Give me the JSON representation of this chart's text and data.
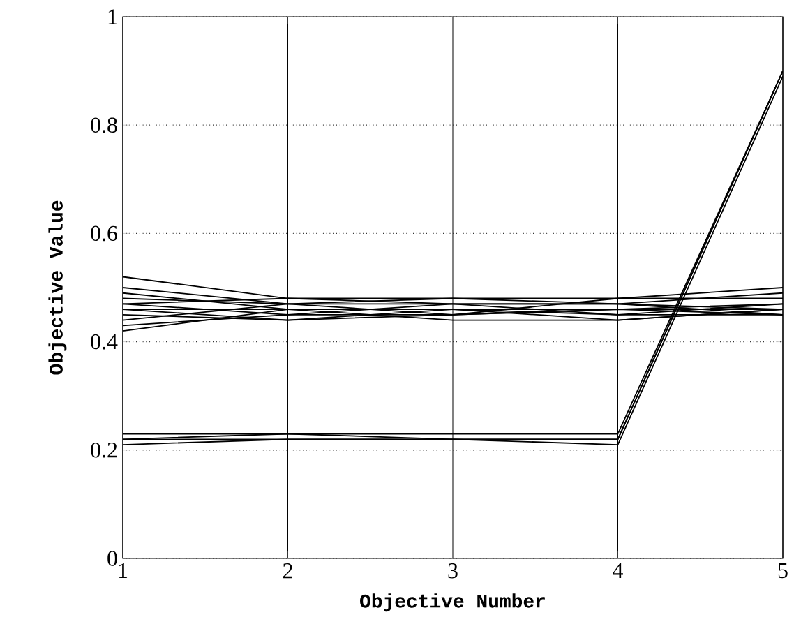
{
  "chart_data": {
    "type": "line",
    "xlabel": "Objective Number",
    "ylabel": "Objective Value",
    "x": [
      1,
      2,
      3,
      4,
      5
    ],
    "xlim": [
      1,
      5
    ],
    "xticks": [
      1,
      2,
      3,
      4,
      5
    ],
    "ylim": [
      0,
      1
    ],
    "yticks": [
      0,
      0.2,
      0.4,
      0.6,
      0.8,
      1
    ],
    "grid": true,
    "marker": "none",
    "line_style": "solid",
    "series": [
      {
        "color": "#000000",
        "values": [
          0.52,
          0.48,
          0.47,
          0.47,
          0.46
        ]
      },
      {
        "color": "#000000",
        "values": [
          0.5,
          0.47,
          0.48,
          0.48,
          0.5
        ]
      },
      {
        "color": "#000000",
        "values": [
          0.49,
          0.46,
          0.46,
          0.45,
          0.47
        ]
      },
      {
        "color": "#000000",
        "values": [
          0.48,
          0.47,
          0.45,
          0.46,
          0.46
        ]
      },
      {
        "color": "#000000",
        "values": [
          0.47,
          0.45,
          0.47,
          0.47,
          0.45
        ]
      },
      {
        "color": "#000000",
        "values": [
          0.46,
          0.46,
          0.44,
          0.44,
          0.46
        ]
      },
      {
        "color": "#000000",
        "values": [
          0.45,
          0.44,
          0.46,
          0.46,
          0.47
        ]
      },
      {
        "color": "#000000",
        "values": [
          0.44,
          0.47,
          0.47,
          0.45,
          0.45
        ]
      },
      {
        "color": "#000000",
        "values": [
          0.43,
          0.45,
          0.45,
          0.48,
          0.48
        ]
      },
      {
        "color": "#000000",
        "values": [
          0.42,
          0.46,
          0.46,
          0.44,
          0.46
        ]
      },
      {
        "color": "#000000",
        "values": [
          0.47,
          0.48,
          0.48,
          0.47,
          0.49
        ]
      },
      {
        "color": "#000000",
        "values": [
          0.46,
          0.44,
          0.45,
          0.46,
          0.45
        ]
      },
      {
        "color": "#000000",
        "values": [
          0.23,
          0.23,
          0.22,
          0.22,
          0.9
        ]
      },
      {
        "color": "#000000",
        "values": [
          0.22,
          0.23,
          0.23,
          0.23,
          0.9
        ]
      },
      {
        "color": "#000000",
        "values": [
          0.22,
          0.22,
          0.22,
          0.21,
          0.89
        ]
      },
      {
        "color": "#000000",
        "values": [
          0.21,
          0.22,
          0.22,
          0.22,
          0.9
        ]
      }
    ]
  }
}
